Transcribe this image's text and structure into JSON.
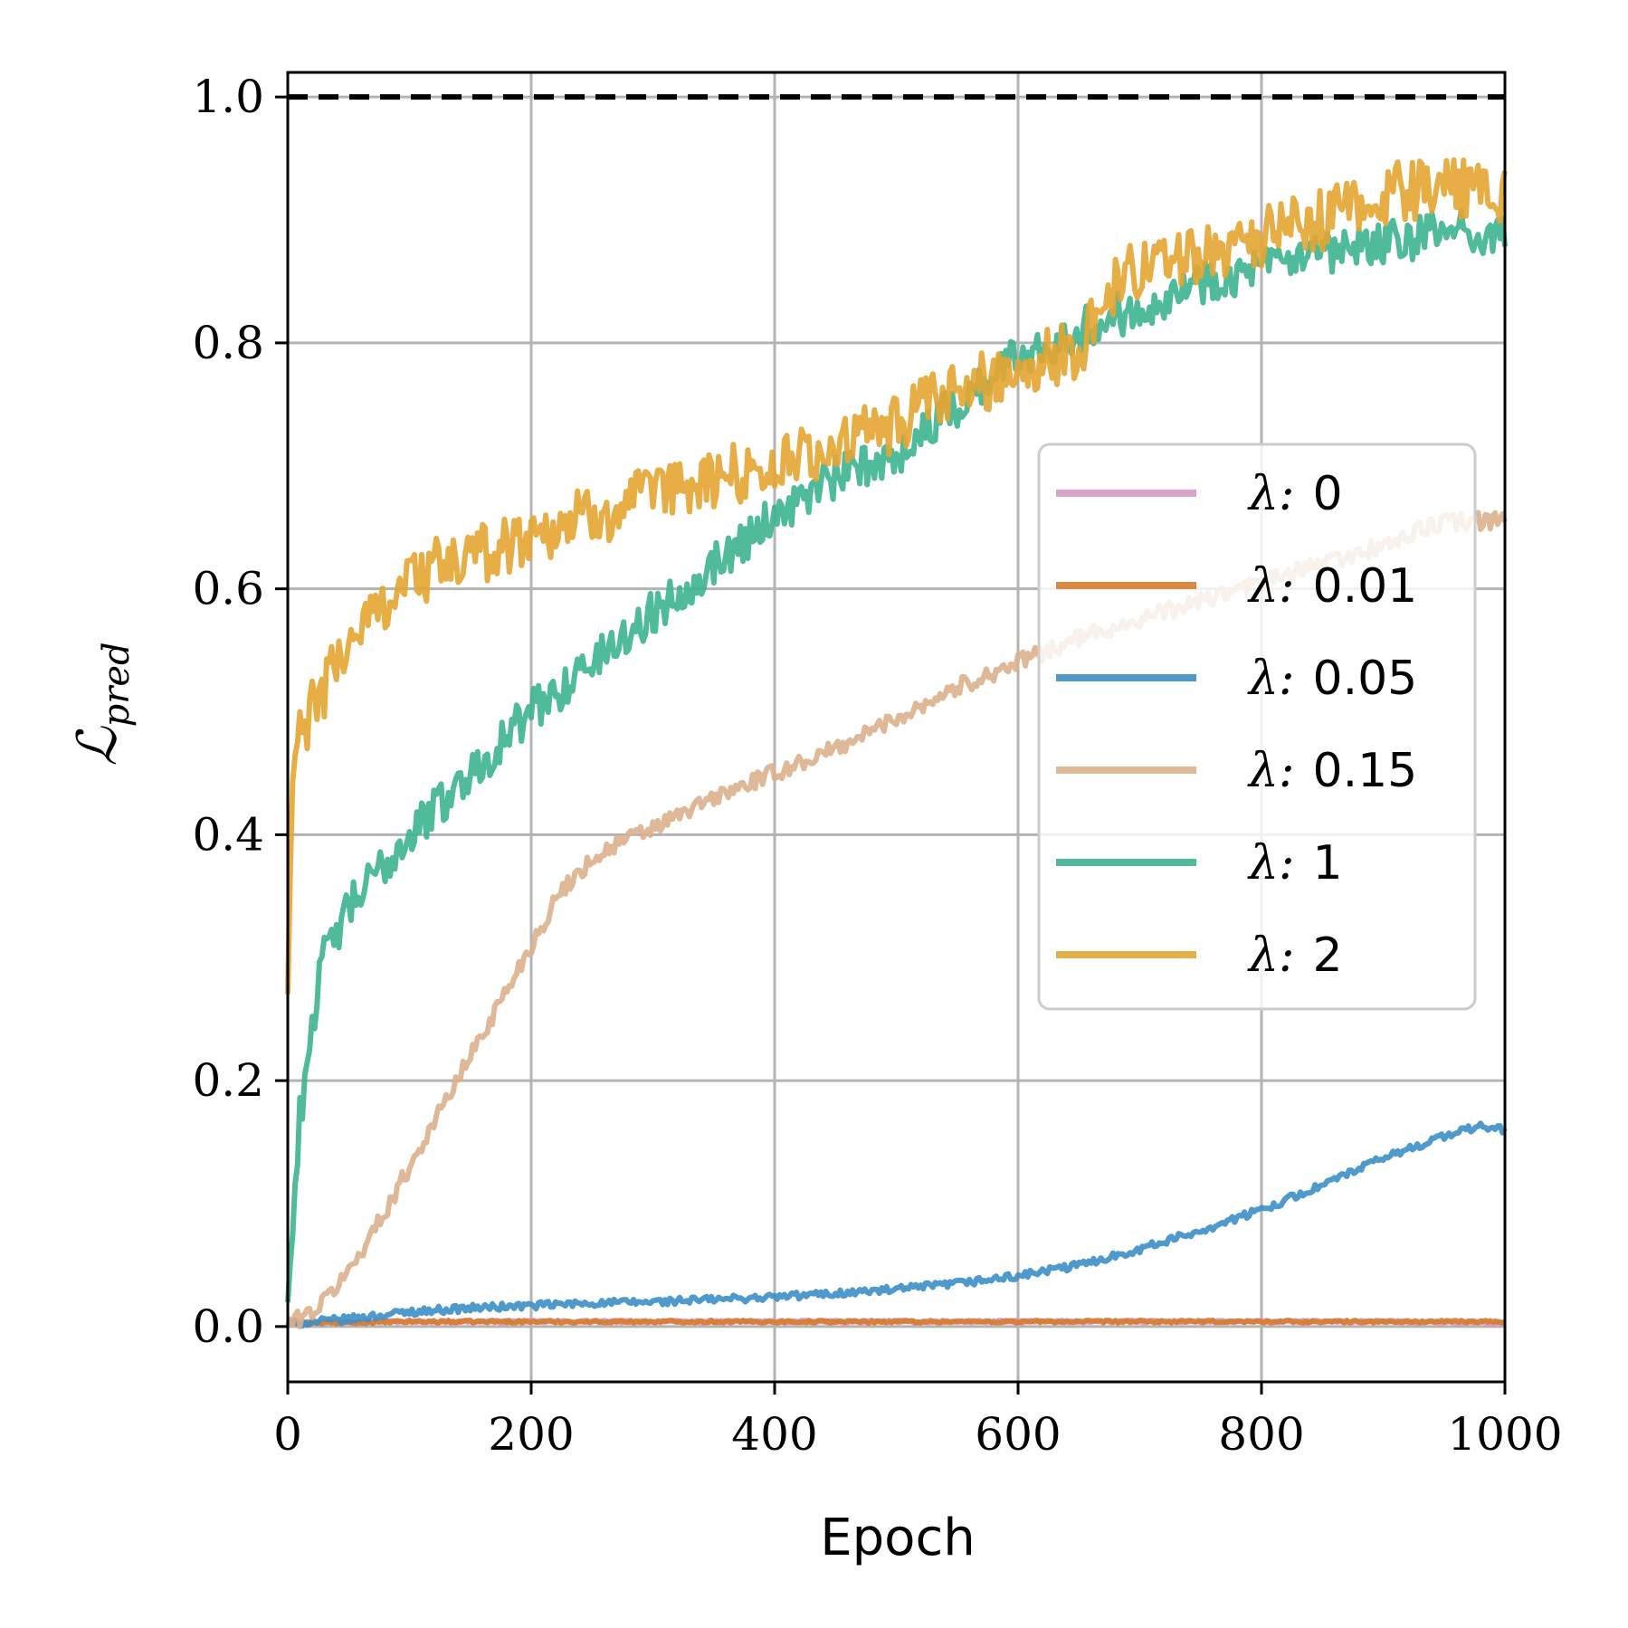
{
  "chart_data": {
    "type": "line",
    "title": "",
    "xlabel": "Epoch",
    "ylabel": "ℒ_pred",
    "ylabel_main": "ℒ",
    "ylabel_sub": "pred",
    "xlim": [
      0,
      1000
    ],
    "ylim": [
      -0.045,
      1.02
    ],
    "xticks": [
      0,
      200,
      400,
      600,
      800,
      1000
    ],
    "xtick_labels": [
      "0",
      "200",
      "400",
      "600",
      "800",
      "1000"
    ],
    "yticks": [
      0.0,
      0.2,
      0.4,
      0.6,
      0.8,
      1.0
    ],
    "ytick_labels": [
      "0.0",
      "0.2",
      "0.4",
      "0.6",
      "0.8",
      "1.0"
    ],
    "grid": true,
    "reference_line": {
      "y": 1.0,
      "style": "dashed",
      "color": "#000000"
    },
    "legend_position": "center-right",
    "series": [
      {
        "name": "λ: 0",
        "legend_prefix": "λ:",
        "legend_value": "0",
        "color": "#d898c4",
        "x": [
          0,
          50,
          100,
          200,
          300,
          400,
          500,
          600,
          700,
          800,
          900,
          1000
        ],
        "y": [
          0.003,
          0.004,
          0.004,
          0.004,
          0.004,
          0.004,
          0.004,
          0.004,
          0.004,
          0.004,
          0.004,
          0.003
        ]
      },
      {
        "name": "λ: 0.01",
        "legend_prefix": "λ:",
        "legend_value": "0.01",
        "color": "#d97a2c",
        "x": [
          0,
          50,
          100,
          200,
          300,
          400,
          500,
          600,
          700,
          800,
          900,
          1000
        ],
        "y": [
          0.003,
          0.003,
          0.004,
          0.004,
          0.004,
          0.004,
          0.004,
          0.004,
          0.004,
          0.004,
          0.004,
          0.004
        ]
      },
      {
        "name": "λ: 0.05",
        "legend_prefix": "λ:",
        "legend_value": "0.05",
        "color": "#3c8fc7",
        "x": [
          0,
          50,
          100,
          150,
          200,
          250,
          300,
          350,
          400,
          450,
          500,
          550,
          600,
          650,
          700,
          750,
          800,
          850,
          900,
          950,
          980,
          1000
        ],
        "y": [
          0.002,
          0.006,
          0.012,
          0.015,
          0.017,
          0.019,
          0.02,
          0.022,
          0.024,
          0.027,
          0.03,
          0.035,
          0.041,
          0.05,
          0.063,
          0.078,
          0.095,
          0.115,
          0.137,
          0.155,
          0.163,
          0.16
        ]
      },
      {
        "name": "λ: 0.15",
        "legend_prefix": "λ:",
        "legend_value": "0.15",
        "color": "#dcb08d",
        "x": [
          0,
          25,
          50,
          75,
          100,
          125,
          150,
          175,
          200,
          225,
          250,
          275,
          300,
          350,
          400,
          450,
          500,
          550,
          600,
          650,
          700,
          750,
          800,
          850,
          900,
          950,
          1000
        ],
        "y": [
          0.002,
          0.015,
          0.045,
          0.085,
          0.13,
          0.175,
          0.22,
          0.265,
          0.31,
          0.355,
          0.38,
          0.395,
          0.405,
          0.43,
          0.45,
          0.47,
          0.495,
          0.52,
          0.54,
          0.56,
          0.575,
          0.59,
          0.605,
          0.62,
          0.635,
          0.655,
          0.655
        ]
      },
      {
        "name": "λ: 1",
        "legend_prefix": "λ:",
        "legend_value": "1",
        "color": "#3cb48f",
        "x": [
          0,
          10,
          20,
          30,
          50,
          75,
          100,
          150,
          200,
          250,
          300,
          350,
          400,
          450,
          500,
          550,
          600,
          650,
          700,
          750,
          800,
          850,
          900,
          950,
          1000
        ],
        "y": [
          0.02,
          0.17,
          0.25,
          0.3,
          0.34,
          0.37,
          0.4,
          0.45,
          0.5,
          0.54,
          0.58,
          0.62,
          0.66,
          0.69,
          0.71,
          0.75,
          0.79,
          0.81,
          0.83,
          0.85,
          0.86,
          0.87,
          0.88,
          0.89,
          0.89
        ]
      },
      {
        "name": "λ: 2",
        "legend_prefix": "λ:",
        "legend_value": "2",
        "color": "#e6a532",
        "x": [
          0,
          3,
          5,
          10,
          20,
          40,
          60,
          80,
          100,
          150,
          200,
          250,
          300,
          350,
          400,
          450,
          500,
          550,
          600,
          650,
          680,
          700,
          750,
          800,
          850,
          900,
          950,
          1000
        ],
        "y": [
          0.27,
          0.42,
          0.46,
          0.48,
          0.5,
          0.54,
          0.57,
          0.59,
          0.61,
          0.625,
          0.645,
          0.66,
          0.675,
          0.69,
          0.7,
          0.715,
          0.735,
          0.76,
          0.78,
          0.795,
          0.85,
          0.86,
          0.875,
          0.885,
          0.9,
          0.92,
          0.93,
          0.92
        ]
      }
    ]
  }
}
